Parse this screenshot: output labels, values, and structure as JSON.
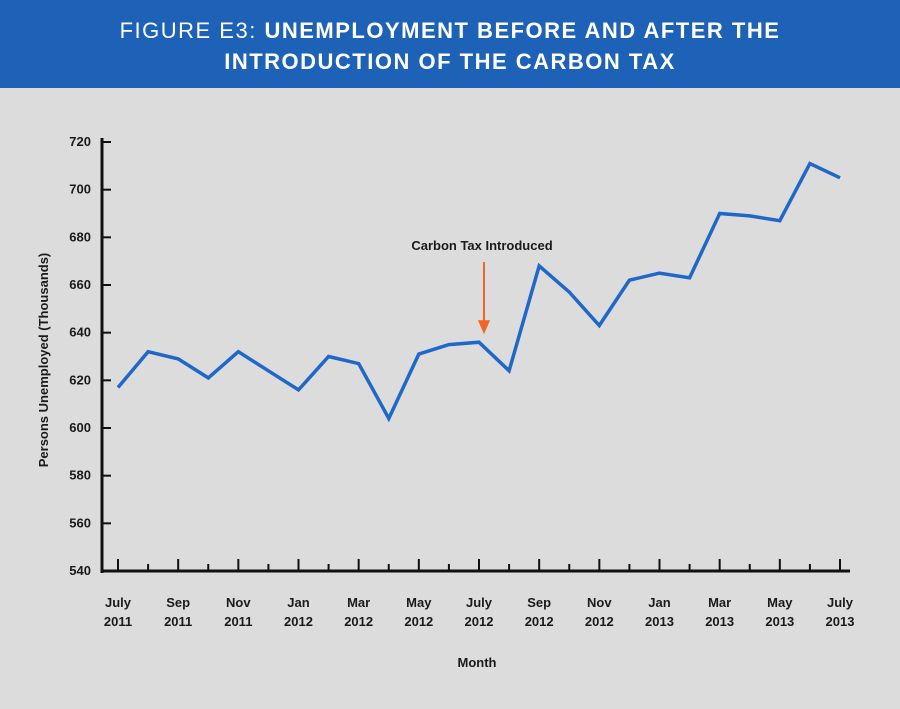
{
  "header": {
    "title_prefix": "FIGURE E3:",
    "title_line1": "UNEMPLOYMENT BEFORE AND AFTER THE",
    "title_line2": "INTRODUCTION OF THE CARBON TAX"
  },
  "chart_data": {
    "type": "line",
    "xlabel": "Month",
    "ylabel": "Persons Unemployed (Thousands)",
    "ylim": [
      540,
      720
    ],
    "yticks": [
      540,
      560,
      580,
      600,
      620,
      640,
      660,
      680,
      700,
      720
    ],
    "x": [
      "2011-07",
      "2011-08",
      "2011-09",
      "2011-10",
      "2011-11",
      "2011-12",
      "2012-01",
      "2012-02",
      "2012-03",
      "2012-04",
      "2012-05",
      "2012-06",
      "2012-07",
      "2012-08",
      "2012-09",
      "2012-10",
      "2012-11",
      "2012-12",
      "2013-01",
      "2013-02",
      "2013-03",
      "2013-04",
      "2013-05",
      "2013-06",
      "2013-07"
    ],
    "tick_labels": [
      [
        "July",
        "2011"
      ],
      [
        "Sep",
        "2011"
      ],
      [
        "Nov",
        "2011"
      ],
      [
        "Jan",
        "2012"
      ],
      [
        "Mar",
        "2012"
      ],
      [
        "May",
        "2012"
      ],
      [
        "July",
        "2012"
      ],
      [
        "Sep",
        "2012"
      ],
      [
        "Nov",
        "2012"
      ],
      [
        "Jan",
        "2013"
      ],
      [
        "Mar",
        "2013"
      ],
      [
        "May",
        "2013"
      ],
      [
        "July",
        "2013"
      ]
    ],
    "series": [
      {
        "color": "#1f68c9",
        "values": [
          617,
          632,
          629,
          621,
          632,
          624,
          616,
          630,
          627,
          604,
          631,
          635,
          636,
          624,
          668,
          657,
          643,
          662,
          665,
          663,
          690,
          689,
          687,
          711,
          705
        ]
      }
    ],
    "annotations": [
      {
        "text": "Carbon Tax Introduced",
        "x": "2012-07",
        "color": "#f26522"
      }
    ],
    "grid": false
  }
}
